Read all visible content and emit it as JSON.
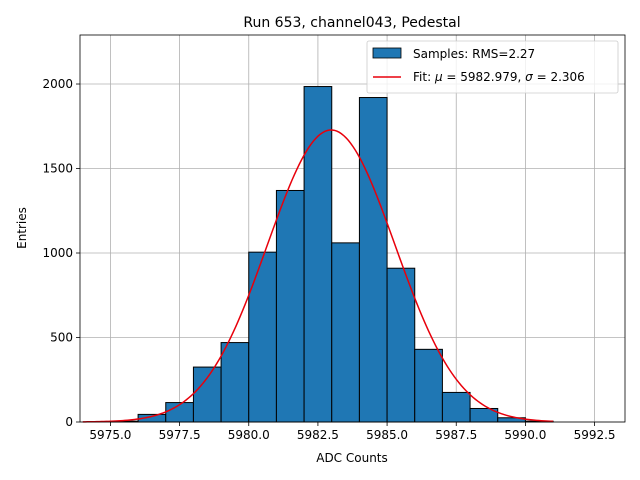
{
  "chart_data": {
    "type": "bar",
    "title": "Run 653, channel043, Pedestal",
    "xlabel": "ADC Counts",
    "ylabel": "Entries",
    "xlim": [
      5973.9,
      5993.6
    ],
    "ylim": [
      0,
      2290
    ],
    "xticks": [
      5975.0,
      5977.5,
      5980.0,
      5982.5,
      5985.0,
      5987.5,
      5990.0,
      5992.5
    ],
    "xtick_labels": [
      "5975.0",
      "5977.5",
      "5980.0",
      "5982.5",
      "5985.0",
      "5987.5",
      "5990.0",
      "5992.5"
    ],
    "yticks": [
      0,
      500,
      1000,
      1500,
      2000
    ],
    "ytick_labels": [
      "0",
      "500",
      "1000",
      "1500",
      "2000"
    ],
    "grid": true,
    "legend_position": "top-right",
    "bar_color": "#1f77b4",
    "fit_color": "#e8000b",
    "histogram": {
      "name": "Samples: RMS=2.27",
      "bin_edges": [
        5975,
        5976,
        5977,
        5978,
        5979,
        5980,
        5981,
        5982,
        5983,
        5984,
        5985,
        5986,
        5987,
        5988,
        5989,
        5990,
        5991
      ],
      "counts": [
        5,
        45,
        115,
        325,
        470,
        1005,
        1370,
        1985,
        1060,
        1920,
        910,
        430,
        175,
        80,
        25,
        5
      ]
    },
    "fit": {
      "name": "Fit: μ = 5982.979, σ = 2.306",
      "mu": 5982.979,
      "sigma": 2.306,
      "amplitude": 1728,
      "x_range": [
        5974,
        5991
      ]
    }
  },
  "legend": {
    "samples_label": "Samples: RMS=2.27",
    "fit_label_prefix": "Fit: ",
    "fit_mu_symbol": "μ",
    "fit_mu_value": " = 5982.979, ",
    "fit_sigma_symbol": "σ",
    "fit_sigma_value": " = 2.306"
  }
}
